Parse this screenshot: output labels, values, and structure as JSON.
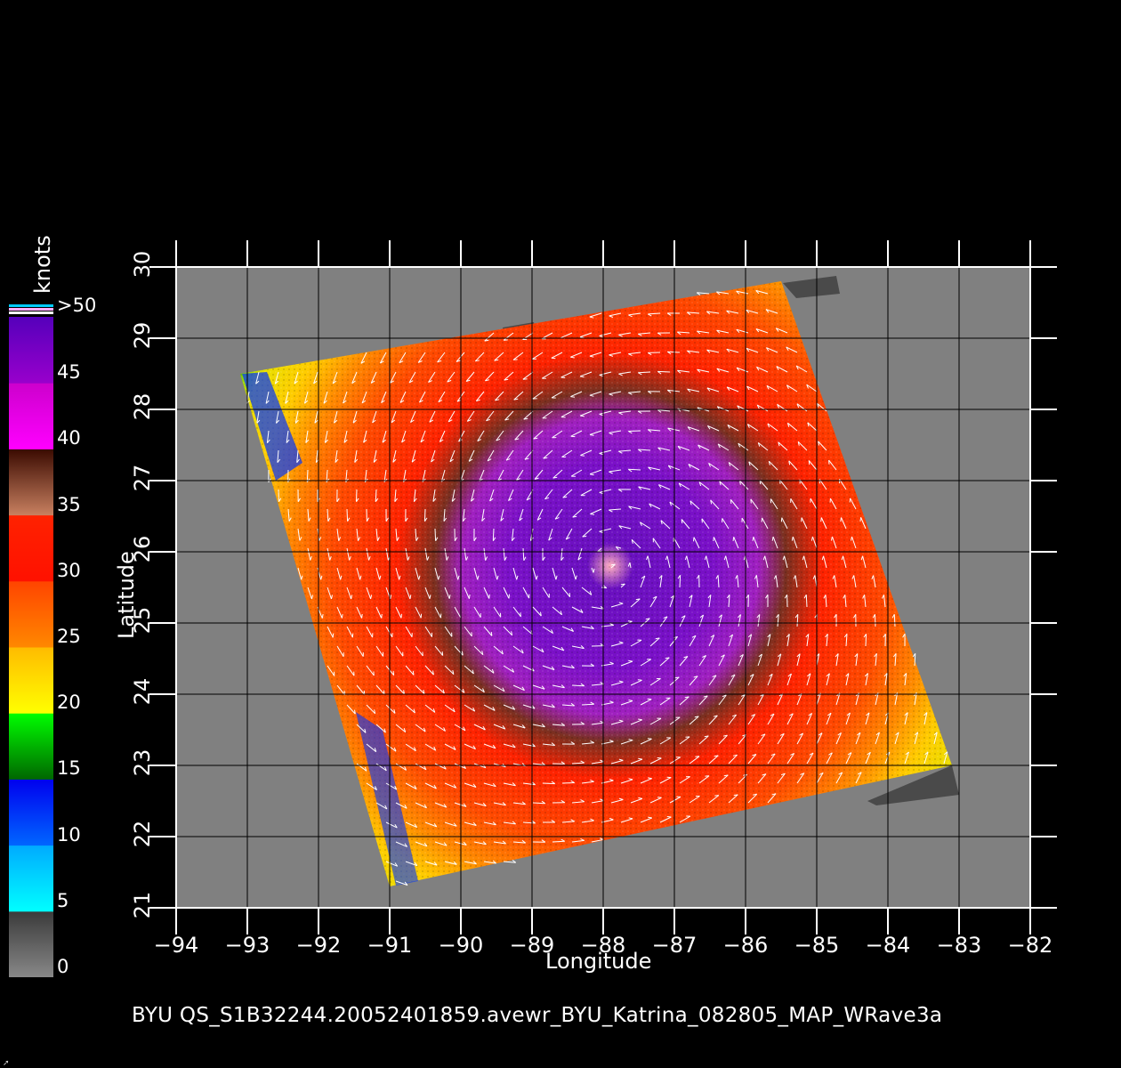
{
  "colorbar": {
    "unit": "knots",
    "ticks": [
      ">50",
      "45",
      "40",
      "35",
      "30",
      "25",
      "20",
      "15",
      "10",
      "5",
      "0"
    ],
    "bands": [
      {
        "from": 0,
        "to": 5,
        "colors": [
          "#888888",
          "#3a3a3a"
        ]
      },
      {
        "from": 5,
        "to": 10,
        "colors": [
          "#00ffff",
          "#00aaff"
        ]
      },
      {
        "from": 10,
        "to": 15,
        "colors": [
          "#0066ff",
          "#0000ee"
        ]
      },
      {
        "from": 15,
        "to": 20,
        "colors": [
          "#006600",
          "#00ff00"
        ]
      },
      {
        "from": 20,
        "to": 25,
        "colors": [
          "#ffff00",
          "#ffbb00"
        ]
      },
      {
        "from": 25,
        "to": 30,
        "colors": [
          "#ff8800",
          "#ff4400"
        ]
      },
      {
        "from": 30,
        "to": 35,
        "colors": [
          "#ff1100",
          "#ff2200"
        ]
      },
      {
        "from": 35,
        "to": 40,
        "colors": [
          "#c88060",
          "#3a0a00"
        ]
      },
      {
        "from": 40,
        "to": 45,
        "colors": [
          "#ff00ff",
          "#cc00cc"
        ]
      },
      {
        "from": 45,
        "to": 50,
        "colors": [
          "#9900cc",
          "#5500bb"
        ]
      }
    ],
    "overflow_colors": [
      "#00ccff",
      "#ffaaff",
      "#ffffff"
    ]
  },
  "map": {
    "x_axis": {
      "label": "Longitude",
      "range": [
        -94,
        -82
      ],
      "ticks": [
        "−94",
        "−93",
        "−92",
        "−91",
        "−90",
        "−89",
        "−88",
        "−87",
        "−86",
        "−85",
        "−84",
        "−83",
        "−82"
      ]
    },
    "y_axis": {
      "label": "Latitude",
      "range": [
        21,
        30
      ],
      "ticks": [
        "21",
        "22",
        "23",
        "24",
        "25",
        "26",
        "27",
        "28",
        "29",
        "30"
      ]
    },
    "grid": true,
    "background_color": "#808080",
    "storm_center": {
      "lon": -87.9,
      "lat": 25.8
    },
    "swath_corners": [
      [
        -93.1,
        28.5
      ],
      [
        -85.5,
        29.8
      ],
      [
        -83.1,
        23.0
      ],
      [
        -91.0,
        21.3
      ]
    ]
  },
  "caption": "BYU  QS_S1B32244.20052401859.avewr_BYU_Katrina_082805_MAP_WRave3a"
}
